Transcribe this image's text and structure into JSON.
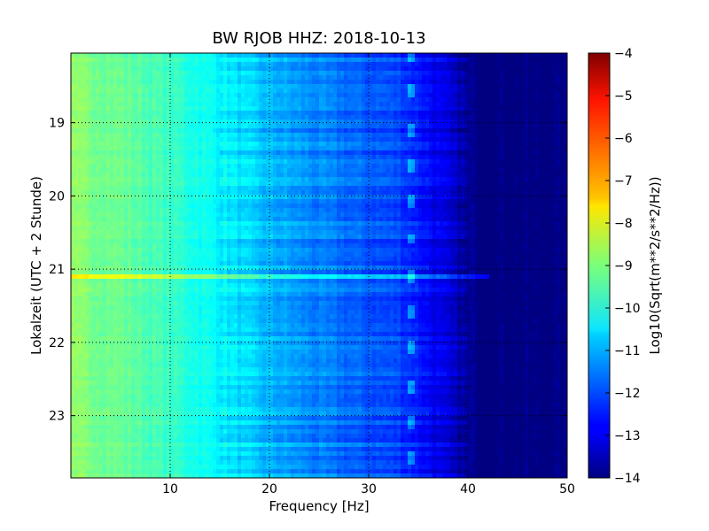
{
  "chart_data": {
    "type": "heatmap",
    "title": "BW RJOB HHZ: 2018-10-13",
    "xlabel": "Frequency [Hz]",
    "ylabel": "Lokalzeit (UTC + 2 Stunde)",
    "xlim": [
      0,
      50
    ],
    "ylim": [
      18.05,
      23.85
    ],
    "y_inverted": true,
    "grid": true,
    "x_ticks": [
      10,
      20,
      30,
      40,
      50
    ],
    "y_ticks": [
      19,
      20,
      21,
      22,
      23
    ],
    "colormap": "jet",
    "colorbar": {
      "label": "Log10(Sqrt(m**2/s**2/Hz))",
      "range": [
        -14,
        -4
      ],
      "ticks": [
        -4,
        -5,
        -6,
        -7,
        -8,
        -9,
        -10,
        -11,
        -12,
        -13,
        -14
      ]
    },
    "spectrum_profile": {
      "frequency_hz": [
        0,
        5,
        10,
        15,
        20,
        25,
        30,
        33,
        35,
        38,
        40,
        42,
        50
      ],
      "log10_amplitude": [
        -8.9,
        -9.2,
        -9.7,
        -10.3,
        -11.0,
        -11.5,
        -11.9,
        -12.1,
        -12.5,
        -13.2,
        -13.8,
        -14.0,
        -14.0
      ]
    },
    "features": [
      {
        "frequency_hz": 34.3,
        "label": "recurring tonal line"
      },
      {
        "time_h": 21.1,
        "label": "broadband event"
      }
    ]
  }
}
